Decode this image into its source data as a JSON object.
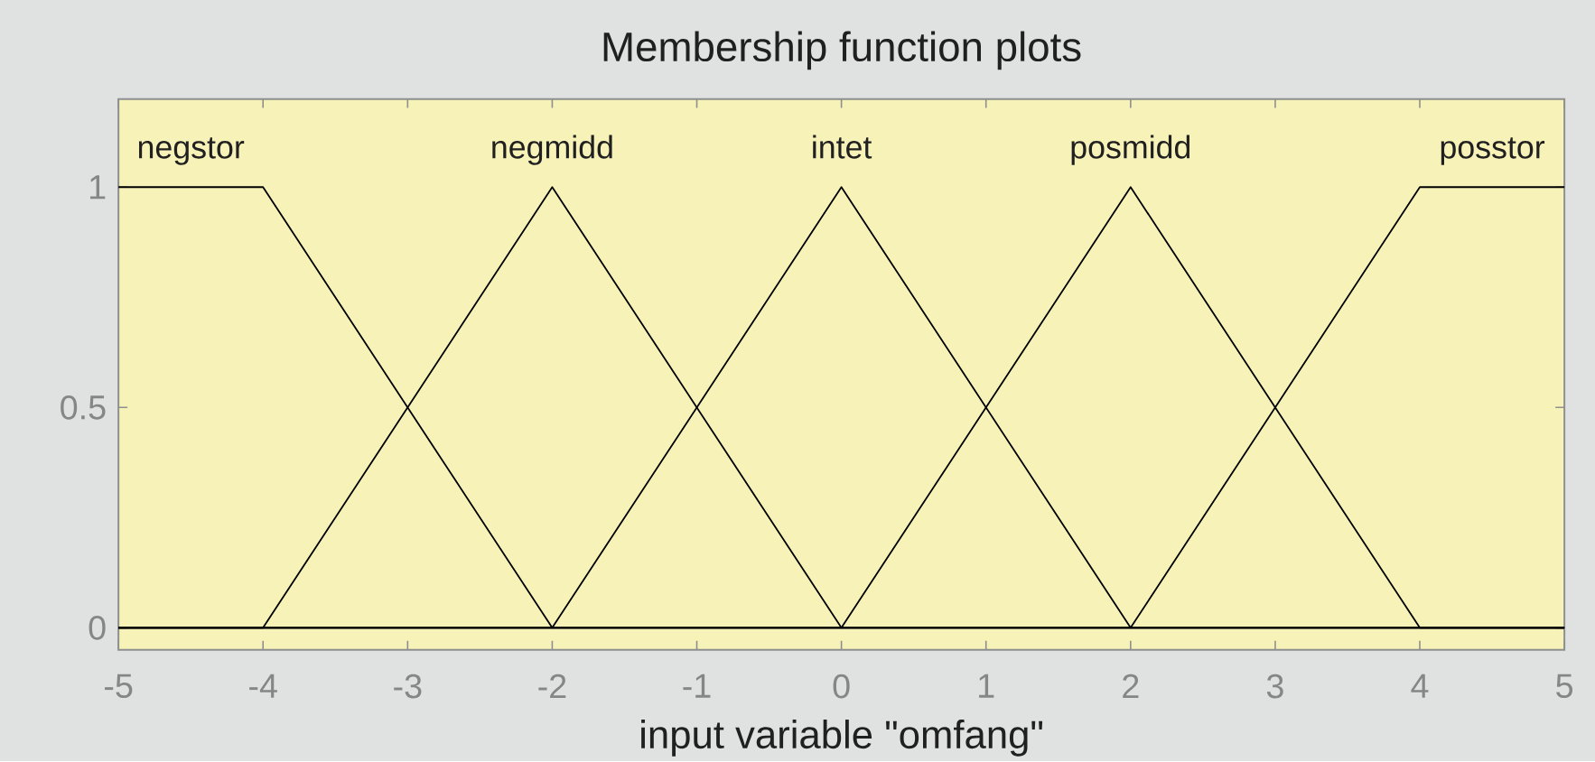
{
  "chart_data": {
    "type": "line",
    "title": "Membership function plots",
    "xlabel": "input variable \"omfang\"",
    "xlim": [
      -5,
      5
    ],
    "ylim": [
      -0.05,
      1.2
    ],
    "xticks": [
      -5,
      -4,
      -3,
      -2,
      -1,
      0,
      1,
      2,
      3,
      4,
      5
    ],
    "yticks": [
      0,
      0.5,
      1
    ],
    "series": [
      {
        "name": "negstor",
        "color": "#000000",
        "x": [
          -5,
          -4,
          -2,
          5
        ],
        "values": [
          1,
          1,
          0,
          0
        ]
      },
      {
        "name": "negmidd",
        "color": "#000000",
        "x": [
          -5,
          -4,
          -2,
          0,
          5
        ],
        "values": [
          0,
          0,
          1,
          0,
          0
        ]
      },
      {
        "name": "intet",
        "color": "#000000",
        "x": [
          -5,
          -2,
          0,
          2,
          5
        ],
        "values": [
          0,
          0,
          1,
          0,
          0
        ]
      },
      {
        "name": "posmidd",
        "color": "#000000",
        "x": [
          -5,
          0,
          2,
          4,
          5
        ],
        "values": [
          0,
          0,
          1,
          0,
          0
        ]
      },
      {
        "name": "posstor",
        "color": "#000000",
        "x": [
          -5,
          2,
          4,
          5
        ],
        "values": [
          0,
          0,
          1,
          1
        ]
      }
    ]
  }
}
